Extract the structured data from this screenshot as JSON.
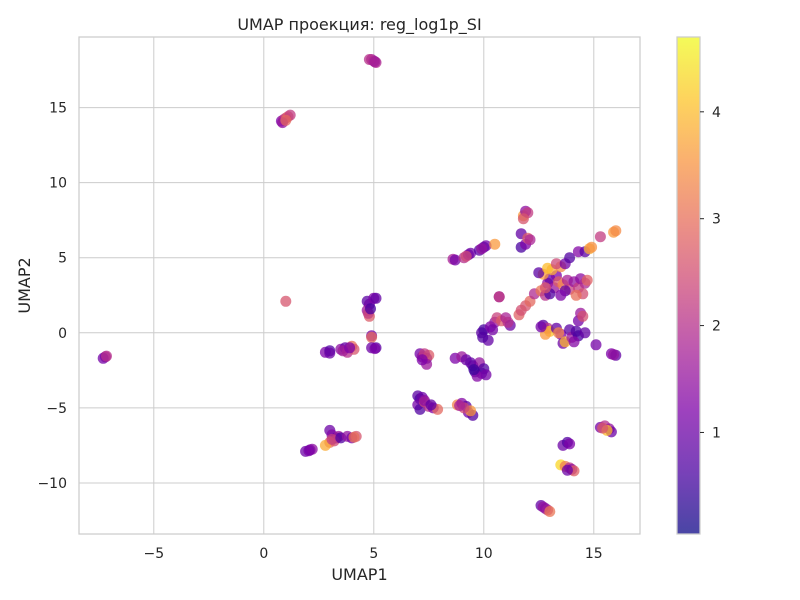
{
  "chart_data": {
    "type": "scatter",
    "title": "UMAP проекция: reg_log1p_SI",
    "xlabel": "UMAP1",
    "ylabel": "UMAP2",
    "xlim": [
      -8.4,
      17.1
    ],
    "ylim": [
      -13.4,
      19.7
    ],
    "xticks": [
      -5,
      0,
      5,
      10,
      15
    ],
    "yticks": [
      -10,
      -5,
      0,
      5,
      10,
      15
    ],
    "xtick_labels": [
      "−5",
      "0",
      "5",
      "10",
      "15"
    ],
    "ytick_labels": [
      "−10",
      "−5",
      "0",
      "5",
      "10",
      "15"
    ],
    "grid": true,
    "colormap": "plasma",
    "point_alpha": 0.75,
    "colorbar": {
      "range": [
        0.05,
        4.7
      ],
      "ticks": [
        1,
        2,
        3,
        4
      ],
      "tick_labels": [
        "1",
        "2",
        "3",
        "4"
      ]
    },
    "points": [
      [
        4.9,
        18.2,
        1.8
      ],
      [
        5.0,
        18.1,
        1.6
      ],
      [
        5.1,
        18.0,
        1.9
      ],
      [
        4.8,
        18.2,
        2.0
      ],
      [
        5.05,
        18.05,
        1.7
      ],
      [
        0.8,
        14.1,
        1.2
      ],
      [
        0.9,
        14.2,
        1.9
      ],
      [
        1.0,
        14.3,
        2.4
      ],
      [
        1.1,
        14.4,
        2.7
      ],
      [
        1.2,
        14.5,
        2.2
      ],
      [
        0.85,
        14.0,
        1.5
      ],
      [
        1.0,
        14.15,
        2.9
      ],
      [
        1.0,
        2.1,
        2.6
      ],
      [
        -7.2,
        -1.6,
        1.6
      ],
      [
        -7.3,
        -1.7,
        1.1
      ],
      [
        -7.15,
        -1.55,
        2.0
      ],
      [
        4.7,
        2.1,
        0.8
      ],
      [
        4.8,
        1.9,
        1.0
      ],
      [
        5.0,
        2.3,
        1.2
      ],
      [
        5.1,
        2.3,
        0.9
      ],
      [
        4.7,
        1.5,
        1.6
      ],
      [
        4.8,
        1.1,
        2.7
      ],
      [
        4.75,
        1.3,
        2.2
      ],
      [
        4.9,
        -0.2,
        1.1
      ],
      [
        4.9,
        -0.3,
        2.9
      ],
      [
        4.9,
        -1.0,
        1.0
      ],
      [
        5.1,
        -1.0,
        0.8
      ],
      [
        4.85,
        1.6,
        0.6
      ],
      [
        5.05,
        -1.05,
        1.2
      ],
      [
        2.8,
        -1.3,
        1.2
      ],
      [
        3.0,
        -1.2,
        0.7
      ],
      [
        3.0,
        -1.35,
        1.0
      ],
      [
        3.5,
        -1.1,
        1.4
      ],
      [
        3.7,
        -1.0,
        0.9
      ],
      [
        3.8,
        -1.3,
        2.0
      ],
      [
        4.0,
        -0.9,
        3.0
      ],
      [
        4.1,
        -1.1,
        2.6
      ],
      [
        3.6,
        -1.2,
        1.7
      ],
      [
        3.9,
        -1.0,
        1.2
      ],
      [
        7.1,
        -1.4,
        1.1
      ],
      [
        7.2,
        -1.6,
        1.5
      ],
      [
        7.4,
        -1.7,
        0.9
      ],
      [
        7.5,
        -1.5,
        2.7
      ],
      [
        7.3,
        -1.4,
        2.2
      ],
      [
        7.4,
        -2.1,
        1.6
      ],
      [
        7.2,
        -1.8,
        1.2
      ],
      [
        7.0,
        -4.2,
        0.8
      ],
      [
        7.1,
        -4.4,
        0.6
      ],
      [
        7.2,
        -4.3,
        1.0
      ],
      [
        7.0,
        -4.8,
        1.1
      ],
      [
        7.1,
        -5.1,
        0.7
      ],
      [
        7.3,
        -4.6,
        2.4
      ],
      [
        7.5,
        -4.9,
        2.0
      ],
      [
        7.7,
        -5.0,
        1.3
      ],
      [
        7.9,
        -5.1,
        2.9
      ],
      [
        7.3,
        -4.5,
        1.4
      ],
      [
        7.6,
        -4.8,
        0.9
      ],
      [
        8.6,
        4.9,
        1.8
      ],
      [
        8.7,
        4.85,
        1.1
      ],
      [
        9.1,
        5.0,
        2.0
      ],
      [
        9.3,
        5.2,
        1.2
      ],
      [
        9.4,
        5.3,
        1.0
      ],
      [
        9.2,
        5.1,
        2.4
      ],
      [
        9.8,
        5.5,
        0.8
      ],
      [
        10.0,
        5.7,
        0.7
      ],
      [
        10.1,
        5.8,
        1.1
      ],
      [
        10.5,
        5.9,
        3.6
      ],
      [
        9.9,
        5.6,
        1.5
      ],
      [
        8.7,
        -1.7,
        1.2
      ],
      [
        9.0,
        -1.6,
        1.6
      ],
      [
        9.2,
        -1.8,
        1.0
      ],
      [
        9.5,
        -2.2,
        0.8
      ],
      [
        9.6,
        -2.6,
        0.6
      ],
      [
        9.9,
        -2.7,
        0.9
      ],
      [
        9.8,
        -2.0,
        1.5
      ],
      [
        10.0,
        -2.4,
        0.7
      ],
      [
        9.7,
        -2.9,
        1.3
      ],
      [
        9.4,
        -2.0,
        0.9
      ],
      [
        10.1,
        -2.8,
        1.1
      ],
      [
        9.55,
        -2.45,
        0.5
      ],
      [
        8.8,
        -4.8,
        3.3
      ],
      [
        9.0,
        -4.7,
        1.3
      ],
      [
        9.2,
        -4.9,
        0.8
      ],
      [
        9.3,
        -5.3,
        1.1
      ],
      [
        9.5,
        -5.5,
        0.7
      ],
      [
        9.4,
        -5.2,
        3.6
      ],
      [
        9.1,
        -5.0,
        2.4
      ],
      [
        8.9,
        -4.85,
        1.8
      ],
      [
        9.9,
        0.0,
        0.8
      ],
      [
        10.0,
        0.2,
        0.6
      ],
      [
        10.2,
        -0.5,
        0.9
      ],
      [
        10.3,
        0.4,
        1.2
      ],
      [
        10.5,
        0.7,
        1.5
      ],
      [
        10.6,
        1.0,
        2.3
      ],
      [
        10.7,
        2.4,
        1.3
      ],
      [
        10.7,
        2.4,
        2.2
      ],
      [
        10.8,
        0.8,
        2.7
      ],
      [
        11.0,
        1.0,
        1.8
      ],
      [
        11.2,
        0.5,
        1.0
      ],
      [
        10.4,
        0.2,
        1.1
      ],
      [
        9.95,
        -0.3,
        0.7
      ],
      [
        11.1,
        0.7,
        2.0
      ],
      [
        11.6,
        1.2,
        2.8
      ],
      [
        11.7,
        1.5,
        2.5
      ],
      [
        11.9,
        1.8,
        2.6
      ],
      [
        12.1,
        2.1,
        2.9
      ],
      [
        12.3,
        2.6,
        1.9
      ],
      [
        12.6,
        2.8,
        3.1
      ],
      [
        12.8,
        2.5,
        2.0
      ],
      [
        12.9,
        3.3,
        1.4
      ],
      [
        13.0,
        3.6,
        0.9
      ],
      [
        13.2,
        3.0,
        1.6
      ],
      [
        13.3,
        3.8,
        1.2
      ],
      [
        13.4,
        3.4,
        2.7
      ],
      [
        13.6,
        3.2,
        3.3
      ],
      [
        13.8,
        3.5,
        1.8
      ],
      [
        13.9,
        2.9,
        2.3
      ],
      [
        14.1,
        3.4,
        1.5
      ],
      [
        14.3,
        3.0,
        2.2
      ],
      [
        14.4,
        3.6,
        1.4
      ],
      [
        14.6,
        3.3,
        1.9
      ],
      [
        14.7,
        3.5,
        2.8
      ],
      [
        14.5,
        2.6,
        2.5
      ],
      [
        14.2,
        2.5,
        3.0
      ],
      [
        13.7,
        2.8,
        0.9
      ],
      [
        12.7,
        3.9,
        3.6
      ],
      [
        13.1,
        4.2,
        3.8
      ],
      [
        13.5,
        4.4,
        3.4
      ],
      [
        12.5,
        4.0,
        0.8
      ],
      [
        12.9,
        4.3,
        4.0
      ],
      [
        13.3,
        4.6,
        2.4
      ],
      [
        13.7,
        4.6,
        1.1
      ],
      [
        13.9,
        5.0,
        0.7
      ],
      [
        14.3,
        5.4,
        1.3
      ],
      [
        14.6,
        5.4,
        0.8
      ],
      [
        14.8,
        5.6,
        3.8
      ],
      [
        14.9,
        5.7,
        3.5
      ],
      [
        13.0,
        2.6,
        0.7
      ],
      [
        13.5,
        2.5,
        1.2
      ],
      [
        12.8,
        3.0,
        2.6
      ],
      [
        11.7,
        6.6,
        0.9
      ],
      [
        11.8,
        7.8,
        3.6
      ],
      [
        11.9,
        8.1,
        1.4
      ],
      [
        12.0,
        8.0,
        2.2
      ],
      [
        11.8,
        7.6,
        2.6
      ],
      [
        11.7,
        5.7,
        0.6
      ],
      [
        11.9,
        5.9,
        1.2
      ],
      [
        12.0,
        6.3,
        2.7
      ],
      [
        12.1,
        6.2,
        1.8
      ],
      [
        12.7,
        0.5,
        0.8
      ],
      [
        12.9,
        0.3,
        2.0
      ],
      [
        13.0,
        0.1,
        4.1
      ],
      [
        12.8,
        -0.1,
        3.6
      ],
      [
        13.3,
        0.3,
        0.9
      ],
      [
        13.5,
        -0.1,
        1.2
      ],
      [
        13.6,
        -0.7,
        1.0
      ],
      [
        13.7,
        -0.6,
        3.9
      ],
      [
        13.9,
        0.2,
        0.8
      ],
      [
        14.0,
        -0.3,
        1.6
      ],
      [
        14.2,
        0.1,
        0.7
      ],
      [
        14.3,
        0.8,
        1.1
      ],
      [
        14.4,
        1.3,
        1.6
      ],
      [
        14.5,
        1.1,
        2.5
      ],
      [
        14.3,
        -0.2,
        0.6
      ],
      [
        14.6,
        0.0,
        0.9
      ],
      [
        14.1,
        -0.6,
        1.3
      ],
      [
        13.4,
        0.0,
        3.3
      ],
      [
        12.6,
        0.4,
        1.1
      ],
      [
        15.1,
        -0.8,
        1.1
      ],
      [
        15.8,
        -1.4,
        1.2
      ],
      [
        16.0,
        -1.5,
        0.9
      ],
      [
        15.9,
        -1.45,
        1.5
      ],
      [
        15.3,
        6.4,
        2.2
      ],
      [
        15.9,
        6.7,
        3.6
      ],
      [
        16.0,
        6.8,
        3.4
      ],
      [
        15.3,
        -6.3,
        1.1
      ],
      [
        15.5,
        -6.2,
        2.0
      ],
      [
        15.7,
        -6.4,
        1.5
      ],
      [
        15.8,
        -6.6,
        1.0
      ],
      [
        15.6,
        -6.5,
        4.0
      ],
      [
        15.4,
        -6.35,
        2.6
      ],
      [
        13.6,
        -7.5,
        1.0
      ],
      [
        13.8,
        -7.3,
        0.7
      ],
      [
        13.9,
        -7.4,
        1.2
      ],
      [
        13.5,
        -8.8,
        4.3
      ],
      [
        13.7,
        -8.9,
        3.2
      ],
      [
        13.9,
        -9.0,
        2.0
      ],
      [
        14.0,
        -9.1,
        1.5
      ],
      [
        14.1,
        -9.2,
        2.8
      ],
      [
        13.8,
        -9.15,
        1.0
      ],
      [
        12.6,
        -11.5,
        0.9
      ],
      [
        12.8,
        -11.7,
        1.1
      ],
      [
        12.9,
        -11.8,
        2.2
      ],
      [
        12.7,
        -11.6,
        1.5
      ],
      [
        13.0,
        -11.9,
        3.1
      ],
      [
        3.0,
        -6.5,
        1.0
      ],
      [
        3.1,
        -6.8,
        1.3
      ],
      [
        3.3,
        -7.0,
        0.9
      ],
      [
        3.4,
        -6.9,
        1.6
      ],
      [
        3.2,
        -7.2,
        2.4
      ],
      [
        3.0,
        -7.3,
        3.0
      ],
      [
        2.8,
        -7.5,
        3.8
      ],
      [
        3.1,
        -7.1,
        2.2
      ],
      [
        3.5,
        -7.0,
        0.7
      ],
      [
        3.8,
        -6.9,
        1.5
      ],
      [
        4.0,
        -7.0,
        1.1
      ],
      [
        4.2,
        -6.9,
        2.6
      ],
      [
        4.1,
        -6.95,
        3.0
      ],
      [
        1.9,
        -7.9,
        1.0
      ],
      [
        2.1,
        -7.8,
        0.9
      ],
      [
        2.2,
        -7.75,
        1.4
      ],
      [
        2.05,
        -7.85,
        1.2
      ]
    ]
  }
}
